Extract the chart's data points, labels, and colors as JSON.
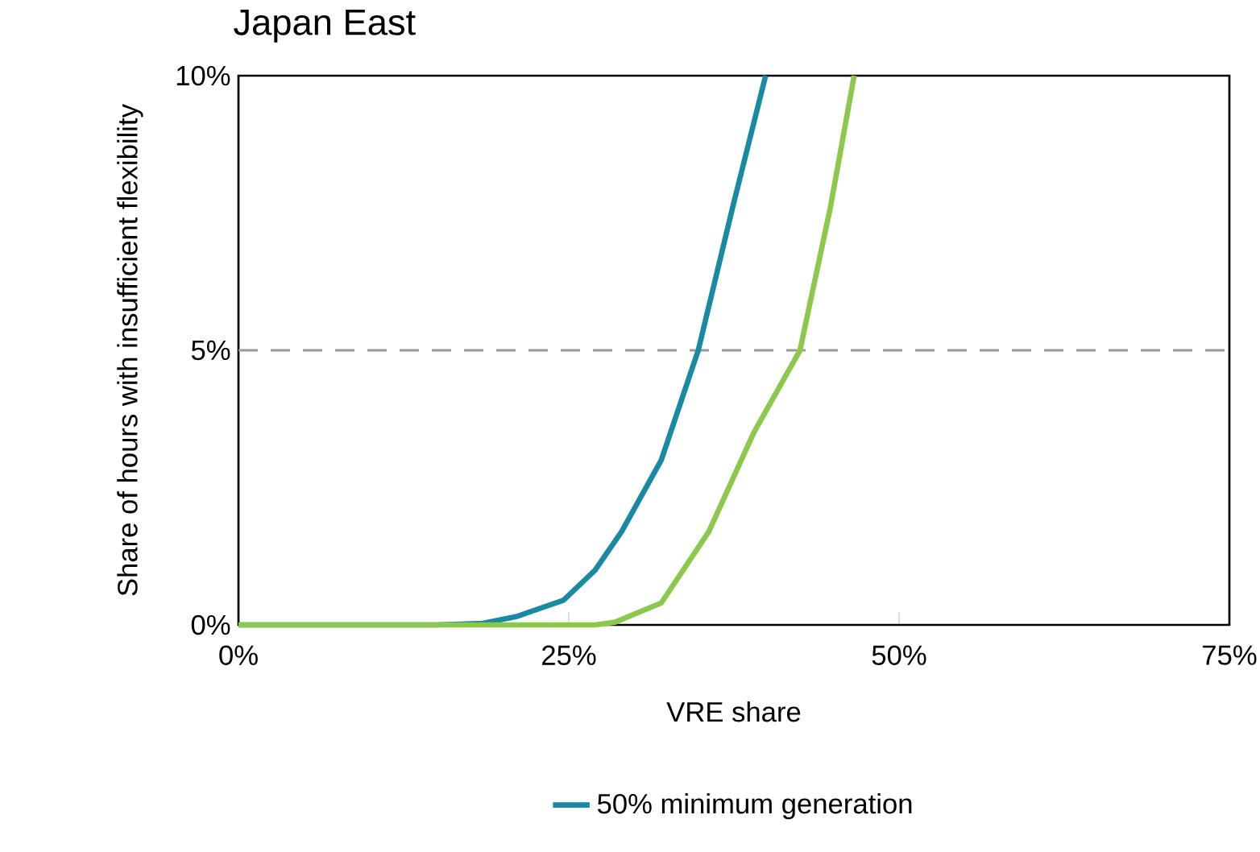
{
  "chart_data": {
    "type": "line",
    "title": "Japan East",
    "xlabel": "VRE share",
    "ylabel": "Share of hours with insufficient flexibility",
    "xlim": [
      0,
      75
    ],
    "ylim": [
      0,
      10
    ],
    "xticks": [
      {
        "value": 0,
        "label": "0%"
      },
      {
        "value": 25,
        "label": "25%"
      },
      {
        "value": 50,
        "label": "50%"
      },
      {
        "value": 75,
        "label": "75%"
      }
    ],
    "yticks": [
      {
        "value": 0,
        "label": "0%"
      },
      {
        "value": 5,
        "label": "5%"
      },
      {
        "value": 10,
        "label": "10%"
      }
    ],
    "series": [
      {
        "name": "50% minimum generation",
        "color": "#1a8aa3",
        "x": [
          0,
          10,
          15,
          18.5,
          21,
          24.6,
          27,
          29,
          32,
          34.8,
          37.4,
          39.9
        ],
        "values": [
          0,
          0,
          0,
          0.03,
          0.15,
          0.45,
          1.0,
          1.7,
          3.0,
          5.0,
          7.6,
          10
        ]
      },
      {
        "color": "#8cc84b",
        "x": [
          0,
          15,
          27,
          28.5,
          32,
          35.6,
          39,
          42.5,
          44.8,
          46.6
        ],
        "values": [
          0,
          0,
          0,
          0.05,
          0.4,
          1.7,
          3.5,
          5.0,
          7.6,
          10
        ]
      }
    ],
    "ref_lines": [
      {
        "axis": "y",
        "value": 5,
        "color": "#999999",
        "line_style": "dashed"
      }
    ],
    "legend": "bottom",
    "grid": false,
    "line_style": "solid"
  }
}
